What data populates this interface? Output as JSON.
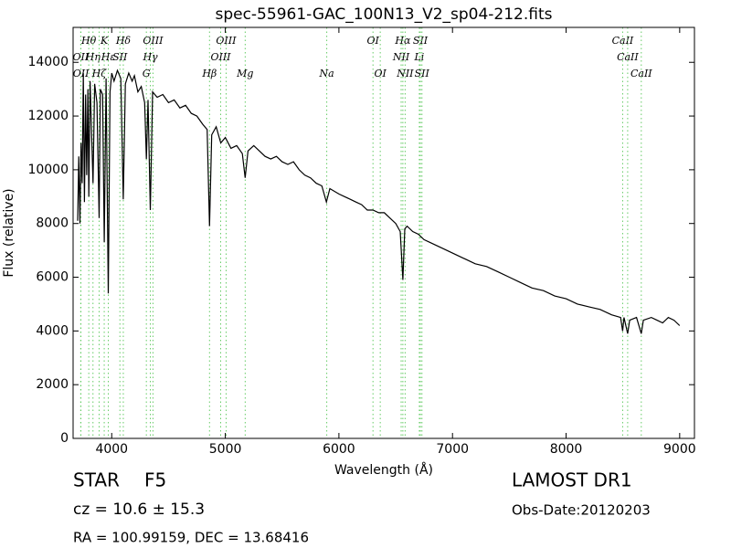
{
  "chart_data": {
    "type": "line",
    "title": "spec-55961-GAC_100N13_V2_sp04-212.fits",
    "x_label": "Wavelength (Å)",
    "y_label": "Flux (relative)",
    "xlim": [
      3660,
      9130
    ],
    "ylim": [
      0,
      15300
    ],
    "xticks": [
      4000,
      5000,
      6000,
      7000,
      8000,
      9000
    ],
    "yticks": [
      0,
      2000,
      4000,
      6000,
      8000,
      10000,
      12000,
      14000
    ],
    "color": "#000000",
    "line_color": "#66cc66",
    "x": [
      3700,
      3710,
      3720,
      3730,
      3740,
      3750,
      3760,
      3770,
      3780,
      3790,
      3798,
      3810,
      3835,
      3850,
      3870,
      3889,
      3900,
      3920,
      3934,
      3950,
      3970,
      3985,
      4000,
      4020,
      4050,
      4080,
      4102,
      4120,
      4150,
      4180,
      4200,
      4230,
      4260,
      4290,
      4305,
      4320,
      4340,
      4360,
      4400,
      4450,
      4500,
      4550,
      4600,
      4650,
      4700,
      4750,
      4800,
      4840,
      4861,
      4880,
      4920,
      4960,
      5000,
      5050,
      5100,
      5150,
      5175,
      5200,
      5250,
      5300,
      5350,
      5400,
      5450,
      5500,
      5550,
      5600,
      5650,
      5700,
      5750,
      5800,
      5850,
      5890,
      5920,
      6000,
      6050,
      6100,
      6150,
      6200,
      6250,
      6300,
      6350,
      6400,
      6450,
      6500,
      6540,
      6563,
      6580,
      6600,
      6650,
      6700,
      6750,
      6800,
      6900,
      7000,
      7100,
      7200,
      7300,
      7400,
      7500,
      7600,
      7700,
      7800,
      7900,
      8000,
      8100,
      8200,
      8300,
      8400,
      8480,
      8498,
      8510,
      8542,
      8560,
      8620,
      8662,
      8680,
      8750,
      8800,
      8850,
      8900,
      8950,
      9000
    ],
    "values": [
      8100,
      10500,
      8000,
      11000,
      9500,
      13600,
      8800,
      12800,
      9800,
      13000,
      9000,
      13300,
      9500,
      13200,
      12500,
      8200,
      13000,
      12800,
      7300,
      13400,
      5400,
      12900,
      13600,
      13300,
      13700,
      13400,
      8900,
      13200,
      13600,
      13300,
      13500,
      12900,
      13100,
      12500,
      10400,
      12600,
      8500,
      12900,
      12700,
      12800,
      12500,
      12600,
      12300,
      12400,
      12100,
      12000,
      11700,
      11500,
      7900,
      11300,
      11600,
      11000,
      11200,
      10800,
      10900,
      10600,
      9700,
      10700,
      10900,
      10700,
      10500,
      10400,
      10500,
      10300,
      10200,
      10300,
      10000,
      9800,
      9700,
      9500,
      9400,
      8800,
      9300,
      9100,
      9000,
      8900,
      8800,
      8700,
      8500,
      8500,
      8400,
      8400,
      8200,
      8000,
      7700,
      5900,
      7800,
      7900,
      7700,
      7600,
      7400,
      7300,
      7100,
      6900,
      6700,
      6500,
      6400,
      6200,
      6000,
      5800,
      5600,
      5500,
      5300,
      5200,
      5000,
      4900,
      4800,
      4600,
      4500,
      4000,
      4500,
      3900,
      4400,
      4500,
      3900,
      4400,
      4500,
      4400,
      4300,
      4500,
      4400,
      4200
    ],
    "lines": [
      {
        "label": "Hθ",
        "wavelength": 3798,
        "row": 0
      },
      {
        "label": "K",
        "wavelength": 3934,
        "row": 0
      },
      {
        "label": "Hδ",
        "wavelength": 4102,
        "row": 0
      },
      {
        "label": "OIII",
        "wavelength": 4363,
        "row": 0
      },
      {
        "label": "OIII",
        "wavelength": 5007,
        "row": 0
      },
      {
        "label": "OI",
        "wavelength": 6300,
        "row": 0
      },
      {
        "label": "Hα",
        "wavelength": 6563,
        "row": 0
      },
      {
        "label": "SII",
        "wavelength": 6717,
        "row": 0
      },
      {
        "label": "CaII",
        "wavelength": 8498,
        "row": 0
      },
      {
        "label": "OII",
        "wavelength": 3727,
        "row": 1
      },
      {
        "label": "Hη",
        "wavelength": 3835,
        "row": 1
      },
      {
        "label": "Hε",
        "wavelength": 3970,
        "row": 1
      },
      {
        "label": "SII",
        "wavelength": 4072,
        "row": 1
      },
      {
        "label": "Hγ",
        "wavelength": 4340,
        "row": 1
      },
      {
        "label": "OIII",
        "wavelength": 4959,
        "row": 1
      },
      {
        "label": "NII",
        "wavelength": 6548,
        "row": 1
      },
      {
        "label": "Li",
        "wavelength": 6708,
        "row": 1
      },
      {
        "label": "CaII",
        "wavelength": 8542,
        "row": 1
      },
      {
        "label": "OII",
        "wavelength": 3729,
        "row": 2
      },
      {
        "label": "Hζ",
        "wavelength": 3889,
        "row": 2
      },
      {
        "label": "G",
        "wavelength": 4305,
        "row": 2
      },
      {
        "label": "Hβ",
        "wavelength": 4861,
        "row": 2
      },
      {
        "label": "Mg",
        "wavelength": 5175,
        "row": 2
      },
      {
        "label": "Na",
        "wavelength": 5893,
        "row": 2
      },
      {
        "label": "OI",
        "wavelength": 6364,
        "row": 2
      },
      {
        "label": "NII",
        "wavelength": 6583,
        "row": 2
      },
      {
        "label": "SII",
        "wavelength": 6731,
        "row": 2
      },
      {
        "label": "CaII",
        "wavelength": 8662,
        "row": 2
      }
    ],
    "info": {
      "class": "STAR",
      "subclass": "F5",
      "cz": "cz = 10.6 ± 15.3",
      "coords": "RA = 100.99159, DEC = 13.68416",
      "survey": "LAMOST DR1",
      "date": "Obs-Date:20120203"
    }
  }
}
